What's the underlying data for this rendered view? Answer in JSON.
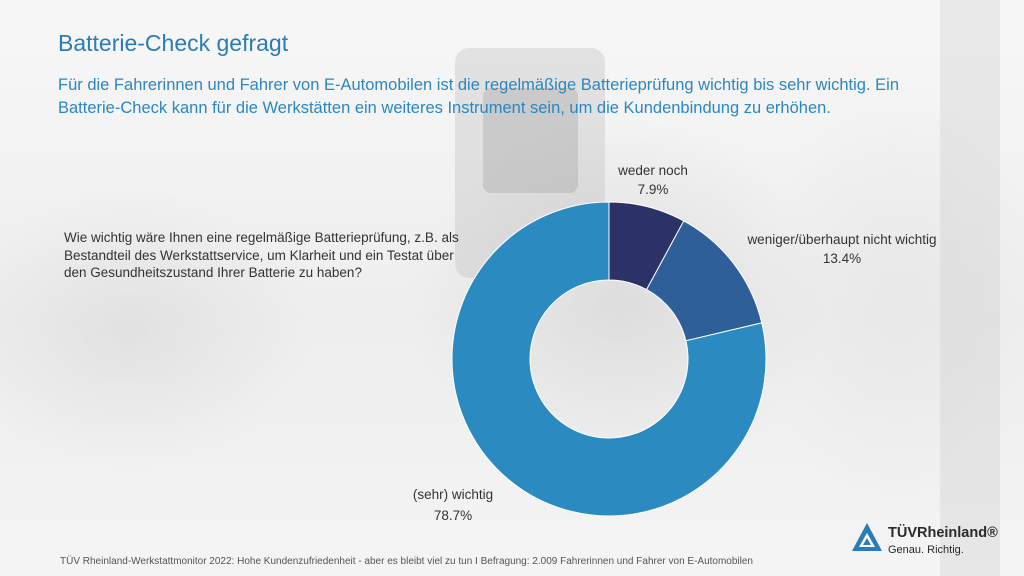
{
  "title": "Batterie-Check gefragt",
  "subtitle": "Für die Fahrerinnen und Fahrer von E-Automobilen ist die regelmäßige Batterieprüfung wichtig bis sehr wichtig. Ein Batterie-Check kann für die Werkstätten ein weiteres Instrument sein, um die Kundenbindung zu erhöhen.",
  "question": "Wie wichtig wäre Ihnen eine regelmäßige Batterieprüfung, z.B. als Bestandteil des Werkstattservice, um Klarheit und ein Testat über den Gesundheitszustand Ihrer Batterie zu haben?",
  "footer": "TÜV Rheinland-Werkstattmonitor 2022: Hohe Kundenzufriedenheit - aber es bleibt viel zu tun I Befragung: 2.009 Fahrerinnen und Fahrer von E-Automobilen",
  "logo": {
    "brand": "TÜVRheinland®",
    "tagline": "Genau. Richtig."
  },
  "chart_data": {
    "type": "pie",
    "variant": "donut",
    "categories": [
      "weder noch",
      "weniger/überhaupt nicht wichtig",
      "(sehr) wichtig"
    ],
    "values": [
      7.9,
      13.4,
      78.7
    ],
    "value_labels": [
      "7.9%",
      "13.4%",
      "78.7%"
    ],
    "colors": [
      "#2c3168",
      "#2f5f98",
      "#2b8bc0"
    ],
    "start": "top, clockwise"
  }
}
